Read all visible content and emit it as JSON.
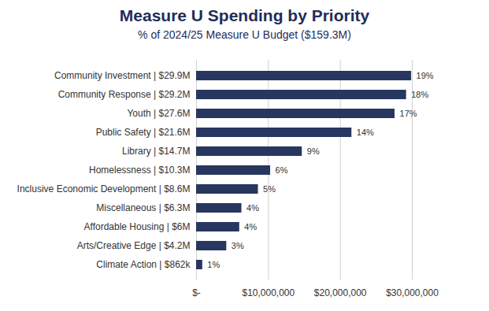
{
  "chart_data": {
    "type": "bar",
    "title": "Measure U Spending by Priority",
    "subtitle": "% of 2024/25 Measure U Budget ($159.3M)",
    "orientation": "horizontal",
    "categories": [
      "Community Investment | $29.9M",
      "Community Response | $29.2M",
      "Youth | $27.6M",
      "Public Safety | $21.6M",
      "Library | $14.7M",
      "Homelessness | $10.3M",
      "Inclusive Economic Development | $8.6M",
      "Miscellaneous | $6.3M",
      "Affordable Housing | $6M",
      "Arts/Creative Edge | $4.2M",
      "Climate Action | $862k"
    ],
    "values": [
      29900000,
      29200000,
      27600000,
      21600000,
      14700000,
      10300000,
      8600000,
      6300000,
      6000000,
      4200000,
      862000
    ],
    "share_labels": [
      "19%",
      "18%",
      "17%",
      "14%",
      "9%",
      "6%",
      "5%",
      "4%",
      "4%",
      "3%",
      "1%"
    ],
    "color": "#27375f",
    "xlim": [
      0,
      30000000
    ],
    "xticks": [
      {
        "value": 0,
        "label": "$-"
      },
      {
        "value": 10000000,
        "label": "$10,000,000"
      },
      {
        "value": 20000000,
        "label": "$20,000,000"
      },
      {
        "value": 30000000,
        "label": "$30,000,000"
      }
    ],
    "grid": true
  }
}
